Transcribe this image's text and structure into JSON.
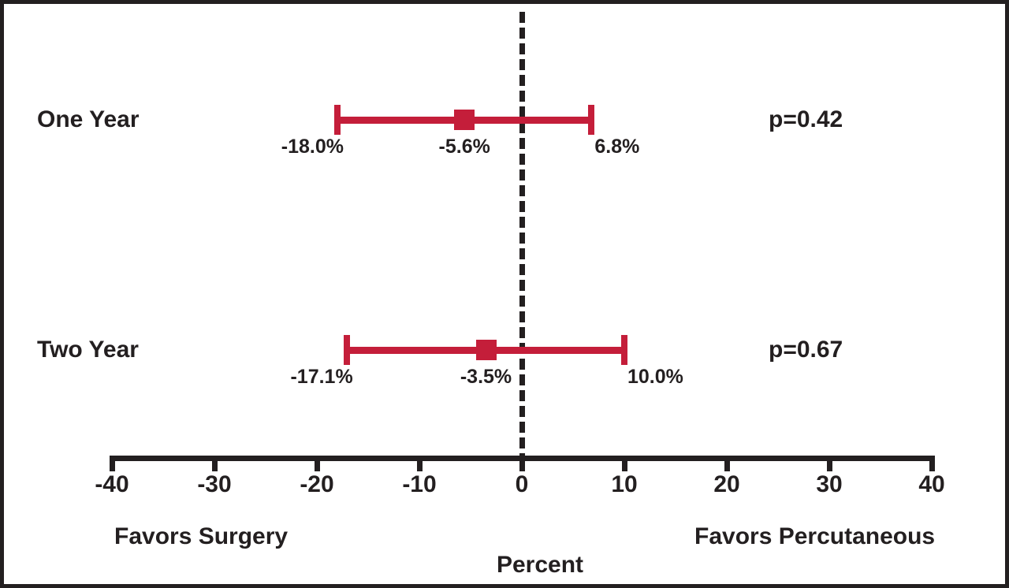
{
  "chart_data": {
    "type": "forest",
    "description": "Forest plot of risk difference (surgery vs percutaneous) at one and two years",
    "axis": {
      "label": "Percent",
      "min": -40,
      "max": 40,
      "ticks": [
        -40,
        -30,
        -20,
        -10,
        0,
        10,
        20,
        30,
        40
      ],
      "zero_reference_line": 0
    },
    "rows": [
      {
        "label": "One Year",
        "low": -18.0,
        "mid": -5.6,
        "high": 6.8,
        "low_label": "-18.0%",
        "mid_label": "-5.6%",
        "high_label": "6.8%",
        "p_label": "p=0.42"
      },
      {
        "label": "Two Year",
        "low": -17.1,
        "mid": -3.5,
        "high": 10.0,
        "low_label": "-17.1%",
        "mid_label": "-3.5%",
        "high_label": "10.0%",
        "p_label": "p=0.67"
      }
    ],
    "footer": {
      "left_direction_label": "Favors Surgery",
      "right_direction_label": "Favors Percutaneous",
      "xlabel": "Percent"
    },
    "colors": {
      "bar": "#C41E3A",
      "ink": "#231F20",
      "background": "#FFFFFF"
    }
  }
}
